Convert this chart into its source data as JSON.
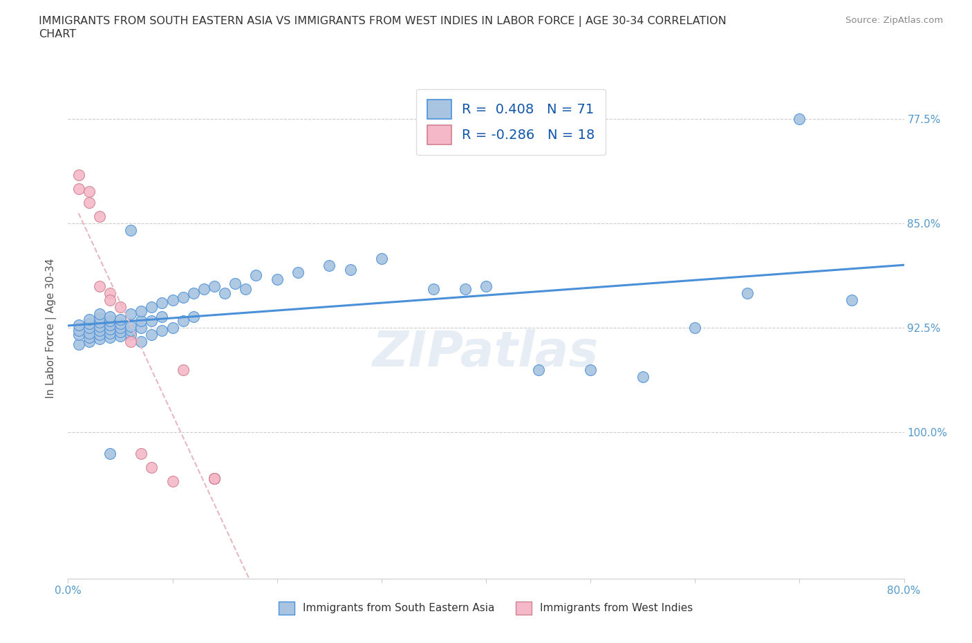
{
  "title": "IMMIGRANTS FROM SOUTH EASTERN ASIA VS IMMIGRANTS FROM WEST INDIES IN LABOR FORCE | AGE 30-34 CORRELATION\nCHART",
  "source": "Source: ZipAtlas.com",
  "ylabel_right_labels": [
    "100.0%",
    "92.5%",
    "85.0%",
    "77.5%"
  ],
  "ylabel_left": "In Labor Force | Age 30-34",
  "watermark": "ZIPatlas",
  "blue_r": 0.408,
  "blue_n": 71,
  "pink_r": -0.286,
  "pink_n": 18,
  "blue_color": "#a8c4e0",
  "pink_color": "#f4b8c8",
  "blue_line_color": "#4a90d9",
  "pink_line_color": "#e0a0b0",
  "blue_x": [
    0.01,
    0.01,
    0.01,
    0.01,
    0.02,
    0.02,
    0.02,
    0.02,
    0.02,
    0.02,
    0.03,
    0.03,
    0.03,
    0.03,
    0.03,
    0.03,
    0.03,
    0.04,
    0.04,
    0.04,
    0.04,
    0.04,
    0.04,
    0.05,
    0.05,
    0.05,
    0.05,
    0.05,
    0.06,
    0.06,
    0.06,
    0.06,
    0.07,
    0.07,
    0.07,
    0.07,
    0.08,
    0.08,
    0.08,
    0.09,
    0.09,
    0.09,
    0.1,
    0.1,
    0.11,
    0.11,
    0.12,
    0.12,
    0.13,
    0.14,
    0.15,
    0.16,
    0.17,
    0.18,
    0.2,
    0.22,
    0.25,
    0.27,
    0.3,
    0.35,
    0.38,
    0.4,
    0.45,
    0.5,
    0.55,
    0.6,
    0.65,
    0.7,
    0.75,
    0.06,
    0.04
  ],
  "blue_y": [
    0.838,
    0.845,
    0.848,
    0.852,
    0.84,
    0.843,
    0.846,
    0.85,
    0.853,
    0.856,
    0.842,
    0.845,
    0.848,
    0.851,
    0.854,
    0.857,
    0.86,
    0.843,
    0.846,
    0.849,
    0.852,
    0.855,
    0.858,
    0.844,
    0.847,
    0.85,
    0.853,
    0.856,
    0.845,
    0.848,
    0.851,
    0.86,
    0.84,
    0.85,
    0.855,
    0.862,
    0.845,
    0.855,
    0.865,
    0.848,
    0.858,
    0.868,
    0.85,
    0.87,
    0.855,
    0.872,
    0.858,
    0.875,
    0.878,
    0.88,
    0.875,
    0.882,
    0.878,
    0.888,
    0.885,
    0.89,
    0.895,
    0.892,
    0.9,
    0.878,
    0.878,
    0.88,
    0.82,
    0.82,
    0.815,
    0.85,
    0.875,
    1.0,
    0.87,
    0.92,
    0.76
  ],
  "pink_x": [
    0.01,
    0.01,
    0.02,
    0.02,
    0.03,
    0.03,
    0.04,
    0.04,
    0.05,
    0.06,
    0.07,
    0.08,
    0.1,
    0.11,
    0.14,
    0.14,
    0.14,
    0.14
  ],
  "pink_y": [
    0.96,
    0.95,
    0.948,
    0.94,
    0.93,
    0.88,
    0.875,
    0.87,
    0.865,
    0.84,
    0.76,
    0.75,
    0.74,
    0.82,
    0.742,
    0.742,
    0.742,
    0.742
  ],
  "xmin": 0.0,
  "xmax": 0.8,
  "ymin": 0.67,
  "ymax": 1.03
}
